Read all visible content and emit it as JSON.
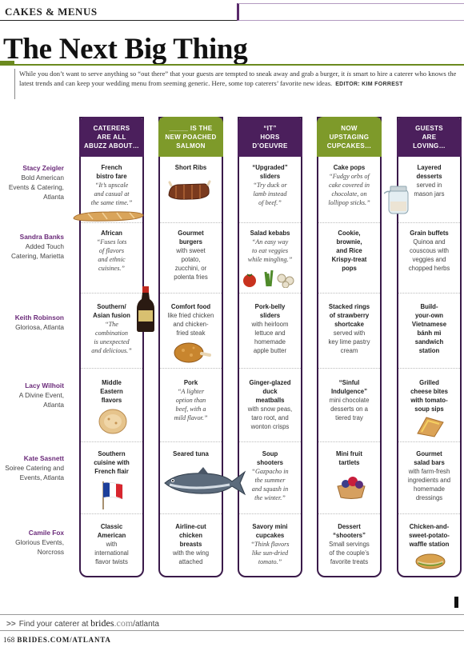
{
  "header": {
    "section": "CAKES & MENUS"
  },
  "title": "The Next Big Thing",
  "intro": {
    "text_before_is": "While you don’t want to serve anything so “out there” that your guests are tempted to sneak away and grab a burger, it ",
    "is_word": "is",
    "text_after_is": " smart to hire a caterer who knows the latest trends and can keep your wedding menu from seeming generic. Here, some top caterers’ favorite new ideas.",
    "editor": "EDITOR: KIM FORREST"
  },
  "columns": [
    {
      "header": "CATERERS\nARE ALL\nABUZZ ABOUT…",
      "color": "#4b1f5c"
    },
    {
      "header": "_____ IS THE\nNEW POACHED\nSALMON",
      "color": "#7e9a2a"
    },
    {
      "header": "“IT”\nHORS\nD’OEUVRE",
      "color": "#4b1f5c"
    },
    {
      "header": "NOW\nUPSTAGING\nCUPCAKES…",
      "color": "#7e9a2a"
    },
    {
      "header": "GUESTS\nARE\nLOVING…",
      "color": "#4b1f5c"
    }
  ],
  "rows": [
    {
      "caterer": {
        "name": "Stacy Zeigler",
        "desc": "Bold American Events & Catering, Atlanta"
      },
      "cells": [
        {
          "title": "French\nbistro fare",
          "desc": "“It’s upscale\nand casual at\nthe same time.”",
          "italic": true
        },
        {
          "title": "Short Ribs",
          "desc": "",
          "italic": false
        },
        {
          "title": "“Upgraded”\nsliders",
          "desc": "“Try duck or\nlamb instead\nof beef.”",
          "italic": true
        },
        {
          "title": "Cake pops",
          "desc": "“Fudgy orbs of\ncake covered in\nchocolate, on\nlollipop sticks.”",
          "italic": true
        },
        {
          "title": "Layered\ndesserts",
          "desc": "served in\nmason jars",
          "italic": false
        }
      ]
    },
    {
      "caterer": {
        "name": "Sandra Banks",
        "desc": "Added Touch Catering, Marietta"
      },
      "cells": [
        {
          "title": "African",
          "desc": "“Fuses lots\nof flavors\nand ethnic\ncuisines.”",
          "italic": true
        },
        {
          "title": "Gourmet\nburgers",
          "desc": "with sweet\npotato,\nzucchini, or\npolenta fries",
          "italic": false
        },
        {
          "title": "Salad kebabs",
          "desc": "“An easy way\nto eat veggies\nwhile mingling.”",
          "italic": true
        },
        {
          "title": "Cookie,\nbrownie,\nand Rice\nKrispy-treat\npops",
          "desc": "",
          "italic": false
        },
        {
          "title": "Grain buffets",
          "desc": "Quinoa and\ncouscous with\nveggies and\nchopped herbs",
          "italic": false
        }
      ]
    },
    {
      "caterer": {
        "name": "Keith Robinson",
        "desc": "Gloriosa, Atlanta"
      },
      "cells": [
        {
          "title": "Southern/\nAsian fusion",
          "desc": "“The\ncombination\nis unexpected\nand delicious.”",
          "italic": true
        },
        {
          "title": "Comfort food",
          "desc": "like fried chicken\nand chicken-\nfried steak",
          "italic": false
        },
        {
          "title": "Pork-belly\nsliders",
          "desc": "with heirloom\nlettuce and\nhomemade\napple butter",
          "italic": false
        },
        {
          "title": "Stacked rings\nof strawberry\nshortcake",
          "desc": "served with\nkey lime pastry\ncream",
          "italic": false
        },
        {
          "title": "Build-\nyour-own\nVietnamese\nbánh mì\nsandwich\nstation",
          "desc": "",
          "italic": false
        }
      ]
    },
    {
      "caterer": {
        "name": "Lacy Wilhoit",
        "desc": "A Divine Event, Atlanta"
      },
      "cells": [
        {
          "title": "Middle\nEastern\nflavors",
          "desc": "",
          "italic": false
        },
        {
          "title": "Pork",
          "desc": "“A lighter\noption than\nbeef, with a\nmild flavor.”",
          "italic": true
        },
        {
          "title": "Ginger-glazed\nduck\nmeatballs",
          "desc": "with snow peas,\ntaro root, and\nwonton crisps",
          "italic": false
        },
        {
          "title": "“Sinful\nIndulgence”",
          "desc": "mini chocolate\ndesserts on a\ntiered tray",
          "italic": false
        },
        {
          "title": "Grilled\ncheese bites\nwith tomato-\nsoup sips",
          "desc": "",
          "italic": false
        }
      ]
    },
    {
      "caterer": {
        "name": "Kate Sasnett",
        "desc": "Soiree Catering and Events, Atlanta"
      },
      "cells": [
        {
          "title": "Southern\ncuisine with\nFrench flair",
          "desc": "",
          "italic": false
        },
        {
          "title": "Seared tuna",
          "desc": "",
          "italic": false
        },
        {
          "title": "Soup\nshooters",
          "desc": "“Gazpacho in\nthe summer\nand squash in\nthe winter.”",
          "italic": true
        },
        {
          "title": "Mini fruit\ntartlets",
          "desc": "",
          "italic": false
        },
        {
          "title": "Gourmet\nsalad bars",
          "desc": "with farm-fresh\ningredients and\nhomemade\ndressings",
          "italic": false
        }
      ]
    },
    {
      "caterer": {
        "name": "Camile Fox",
        "desc": "Glorious Events, Norcross"
      },
      "cells": [
        {
          "title": "Classic\nAmerican",
          "desc": "with\ninternational\nflavor twists",
          "italic": false
        },
        {
          "title": "Airline-cut\nchicken\nbreasts",
          "desc": "with the wing\nattached",
          "italic": false
        },
        {
          "title": "Savory mini\ncupcakes",
          "desc": "“Think flavors\nlike sun-dried\ntomato.”",
          "italic": true
        },
        {
          "title": "Dessert\n“shooters”",
          "desc": "Small servings\nof the couple’s\nfavorite treats",
          "italic": false
        },
        {
          "title": "Chicken-and-\nsweet-potato-\nwaffle station",
          "desc": "",
          "italic": false
        }
      ]
    }
  ],
  "footer": {
    "arrows": ">>",
    "find_text": "Find your caterer at ",
    "brand": "brides",
    "brand_suffix": ".com",
    "path": "/atlanta",
    "page_number": "168",
    "site": "BRIDES.COM/ATLANTA"
  },
  "colors": {
    "purple": "#4b1f5c",
    "green": "#7e9a2a",
    "name": "#6b2b7a"
  },
  "illustrations": [
    "baguette",
    "short-ribs",
    "mason-jar",
    "vegetables",
    "soy-sauce-bottle",
    "fried-chicken",
    "pita-bread",
    "grilled-cheese",
    "french-flag",
    "tuna-fish",
    "fruit-tartlet",
    "salad-sandwich"
  ]
}
